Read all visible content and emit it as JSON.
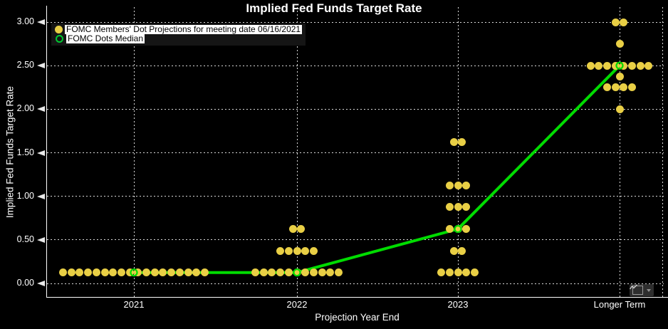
{
  "title": "Implied Fed Funds Target Rate",
  "y_axis": {
    "label": "Implied Fed Funds Target Rate",
    "ticks": [
      "0.00",
      "0.50",
      "1.00",
      "1.50",
      "2.00",
      "2.50",
      "3.00"
    ]
  },
  "x_axis": {
    "label": "Projection Year End",
    "categories": [
      "2021",
      "2022",
      "2023",
      "Longer Term"
    ]
  },
  "legend": {
    "items": [
      {
        "label": "FOMC Members' Dot Projections for meeting date 06/16/2021",
        "marker": "filled-dot",
        "color": "#E9CF45"
      },
      {
        "label": "FOMC Dots Median",
        "marker": "open-ring",
        "color": "#00C832"
      }
    ]
  },
  "colors": {
    "background": "#000000",
    "axis": "#FFFFFF",
    "grid": "#D9D9D9",
    "dots": "#E9CF45",
    "median": "#00DC00"
  },
  "chart_data": {
    "type": "scatter",
    "title": "Implied Fed Funds Target Rate",
    "xlabel": "Projection Year End",
    "ylabel": "Implied Fed Funds Target Rate",
    "categories": [
      "2021",
      "2022",
      "2023",
      "Longer Term"
    ],
    "ylim": [
      0,
      3
    ],
    "ytick_step": 0.5,
    "grid": "dotted",
    "series": [
      {
        "name": "FOMC Members' Dot Projections for meeting date 06/16/2021",
        "type": "dot-cluster",
        "color": "#E9CF45",
        "clusters": [
          {
            "category": "2021",
            "rate": 0.125,
            "count": 18
          },
          {
            "category": "2022",
            "rate": 0.625,
            "count": 2
          },
          {
            "category": "2022",
            "rate": 0.375,
            "count": 5
          },
          {
            "category": "2022",
            "rate": 0.125,
            "count": 11
          },
          {
            "category": "2023",
            "rate": 1.625,
            "count": 2
          },
          {
            "category": "2023",
            "rate": 1.125,
            "count": 3
          },
          {
            "category": "2023",
            "rate": 0.875,
            "count": 3
          },
          {
            "category": "2023",
            "rate": 0.625,
            "count": 3
          },
          {
            "category": "2023",
            "rate": 0.375,
            "count": 2
          },
          {
            "category": "2023",
            "rate": 0.125,
            "count": 5
          },
          {
            "category": "Longer Term",
            "rate": 3.0,
            "count": 2
          },
          {
            "category": "Longer Term",
            "rate": 2.75,
            "count": 1
          },
          {
            "category": "Longer Term",
            "rate": 2.5,
            "count": 8
          },
          {
            "category": "Longer Term",
            "rate": 2.375,
            "count": 1
          },
          {
            "category": "Longer Term",
            "rate": 2.25,
            "count": 4
          },
          {
            "category": "Longer Term",
            "rate": 2.0,
            "count": 1
          }
        ]
      },
      {
        "name": "FOMC Dots Median",
        "type": "line-with-ring-markers",
        "color": "#00DC00",
        "values": [
          0.125,
          0.125,
          0.625,
          2.5
        ]
      }
    ]
  },
  "widget": {
    "chart_type_icon": "line-chart-icon",
    "dropdown_icon": "caret-down-icon"
  }
}
